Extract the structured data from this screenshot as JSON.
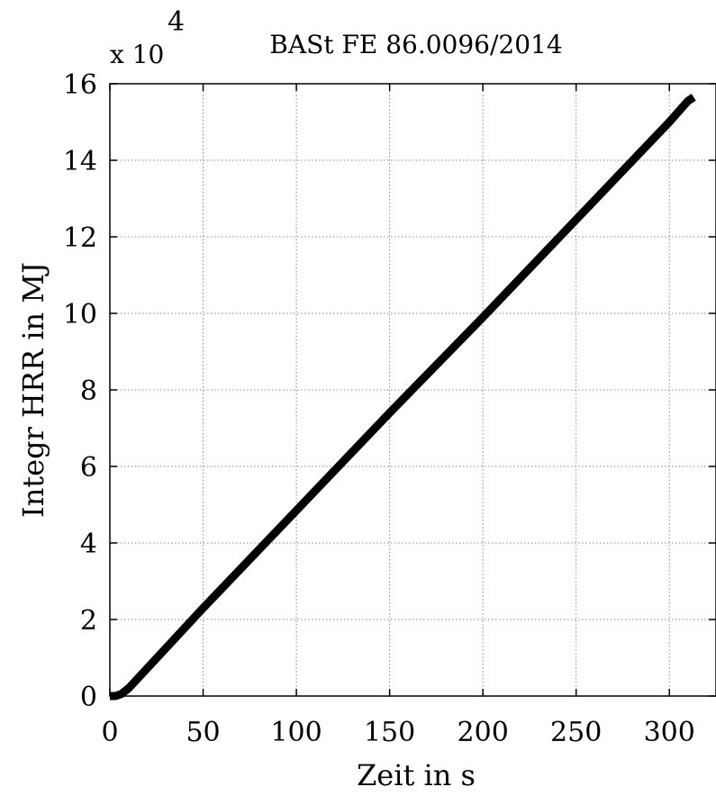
{
  "chart_data": {
    "type": "line",
    "title": "BASt FE 86.0096/2014",
    "xlabel": "Zeit in s",
    "ylabel": "Integr HRR in MJ",
    "y_multiplier_base": "x 10",
    "y_multiplier_exponent": "4",
    "xlim": [
      0,
      325
    ],
    "ylim": [
      0,
      16
    ],
    "x_ticks": [
      0,
      50,
      100,
      150,
      200,
      250,
      300
    ],
    "x_tick_labels": [
      "0",
      "50",
      "100",
      "150",
      "200",
      "250",
      "300"
    ],
    "y_ticks": [
      0,
      2,
      4,
      6,
      8,
      10,
      12,
      14,
      16
    ],
    "y_tick_labels": [
      "0",
      "2",
      "4",
      "6",
      "8",
      "10",
      "12",
      "14",
      "16"
    ],
    "grid": true,
    "series": [
      {
        "color": "#000000",
        "x": [
          0,
          3,
          6,
          10,
          50,
          100,
          150,
          200,
          250,
          300,
          310,
          313
        ],
        "y": [
          0,
          0,
          0.05,
          0.2,
          2.3,
          4.85,
          7.4,
          9.9,
          12.45,
          15.0,
          15.55,
          15.65
        ]
      }
    ]
  }
}
